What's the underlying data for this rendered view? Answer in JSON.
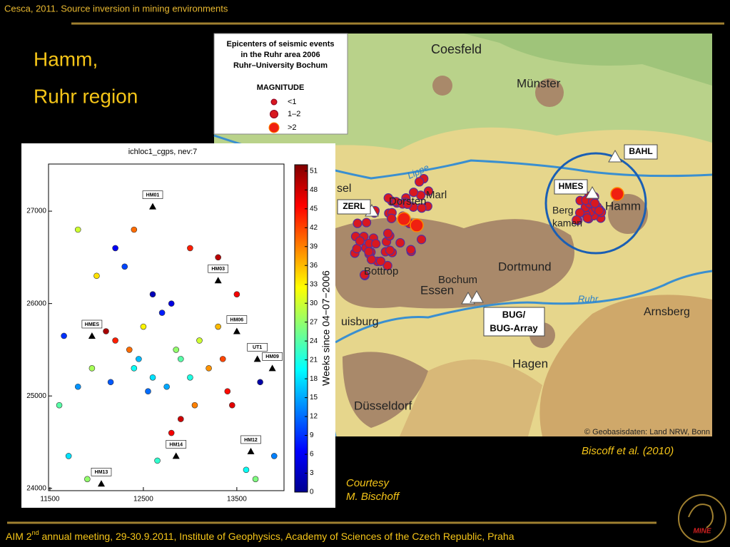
{
  "header": {
    "source": "Cesca, 2011. Source inversion in mining environments",
    "title_lines": [
      "Hamm,",
      "Ruhr region"
    ]
  },
  "map": {
    "legend": {
      "title_lines": [
        "Epicenters of seismic events",
        "in the Ruhr area 2006",
        "Ruhr–University Bochum"
      ],
      "magnitude_title": "MAGNITUDE",
      "classes": [
        "<1",
        "1–2",
        ">2"
      ]
    },
    "labels": [
      "Coesfeld",
      "Münster",
      "Marl",
      "Dorsten",
      "Bottrop",
      "Essen",
      "Bochum",
      "Dortmund",
      "Hagen",
      "Arnsberg",
      "Düsseldorf",
      "uisburg",
      "sel",
      "Hamm",
      "Berg",
      "kamen",
      "Lippe",
      "Ruhr"
    ],
    "stations": [
      "ZERL",
      "HMES",
      "BAHL"
    ],
    "array_label": [
      "BUG/",
      "BUG-Array"
    ],
    "copyright": "© Geobasisdaten: Land NRW, Bonn"
  },
  "chart_data": {
    "type": "scatter",
    "title": "ichloc1_cgps, nev:7",
    "xlim": [
      11485,
      14005
    ],
    "ylim": [
      23975,
      27510
    ],
    "xticks": [
      11500,
      12500,
      13500
    ],
    "yticks": [
      24000,
      25000,
      26000,
      27000
    ],
    "colorbar": {
      "label": "Weeks since 04−07−2006",
      "lim": [
        0,
        52
      ],
      "ticks": [
        0,
        3,
        6,
        9,
        12,
        15,
        18,
        21,
        24,
        27,
        30,
        33,
        36,
        39,
        42,
        45,
        48,
        51
      ]
    },
    "x": [
      12400,
      12600,
      12750,
      12550,
      12900,
      13100,
      13300,
      13200,
      13400,
      13450,
      12350,
      12200,
      12500,
      12700,
      12800,
      12600,
      12300,
      11950,
      11800,
      11600,
      12100,
      12800,
      12900,
      12650,
      13600,
      13700,
      11700,
      11900,
      12200,
      12000,
      13500,
      13300,
      11800,
      12850,
      13000,
      12450,
      13350,
      13050,
      12150,
      13750,
      11650,
      13900,
      12400,
      13000
    ],
    "y": [
      25300,
      25200,
      25100,
      25050,
      25400,
      25600,
      25750,
      25300,
      25050,
      24900,
      25500,
      25600,
      25750,
      25900,
      26000,
      26100,
      26400,
      25300,
      25100,
      24900,
      25700,
      24600,
      24750,
      24300,
      24200,
      24100,
      24350,
      24100,
      26600,
      26300,
      26100,
      26500,
      26800,
      25500,
      25200,
      25400,
      25400,
      24900,
      25150,
      25150,
      25650,
      24350,
      26800,
      26600
    ],
    "values": [
      20,
      18,
      15,
      12,
      24,
      30,
      36,
      38,
      45,
      47,
      40,
      44,
      33,
      8,
      5,
      3,
      10,
      28,
      14,
      24,
      50,
      46,
      48,
      22,
      20,
      26,
      18,
      27,
      6,
      34,
      46,
      49,
      30,
      27,
      21,
      16,
      42,
      39,
      11,
      2,
      9,
      13,
      40,
      44
    ],
    "stations": [
      {
        "name": "HM01",
        "x": 12600,
        "y": 27050
      },
      {
        "name": "HM03",
        "x": 13300,
        "y": 26250
      },
      {
        "name": "HMES",
        "x": 11950,
        "y": 25650
      },
      {
        "name": "HM06",
        "x": 13500,
        "y": 25700
      },
      {
        "name": "UT1",
        "x": 13720,
        "y": 25400
      },
      {
        "name": "HM09",
        "x": 13880,
        "y": 25300
      },
      {
        "name": "HM14",
        "x": 12850,
        "y": 24350
      },
      {
        "name": "HM12",
        "x": 13650,
        "y": 24400
      },
      {
        "name": "HM13",
        "x": 12050,
        "y": 24050
      }
    ]
  },
  "credits": {
    "citation": "Biscoff et al. (2010)",
    "courtesy": [
      "Courtesy",
      "M. Bischoff"
    ]
  },
  "footer": {
    "parts": [
      "AIM 2",
      "nd",
      " annual meeting, 29-30.9.2011, Institute of Geophysics, Academy of Sciences of the Czech Republic, Praha"
    ]
  },
  "logo": "MINE"
}
